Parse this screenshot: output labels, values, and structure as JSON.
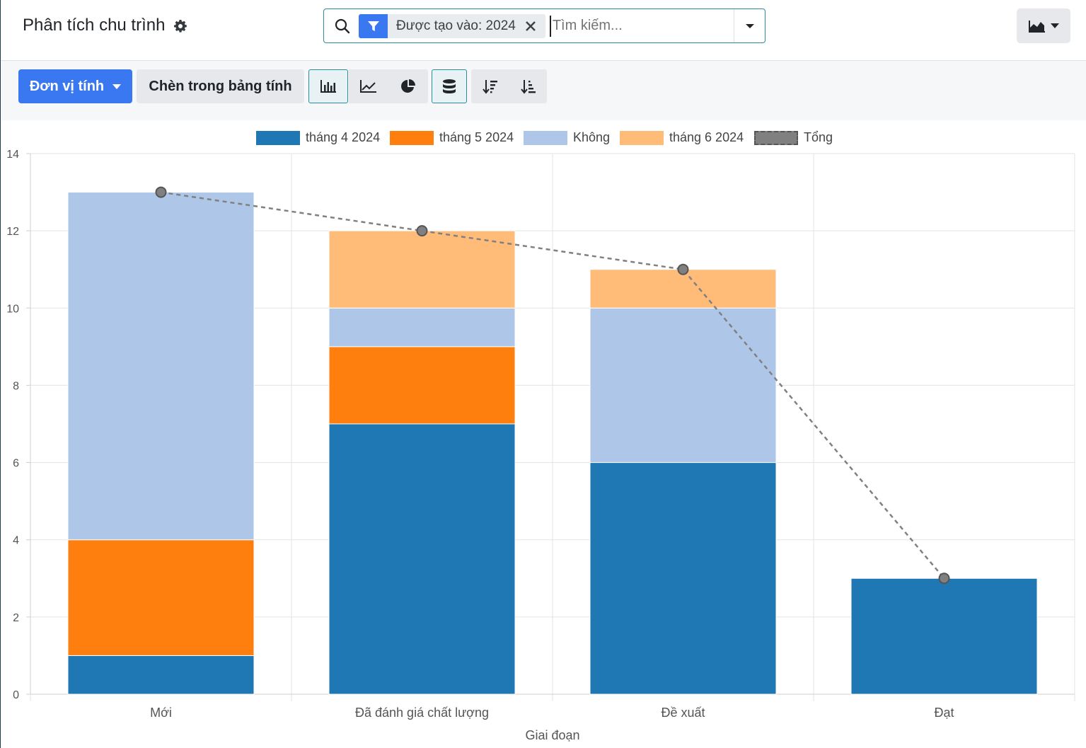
{
  "header": {
    "title": "Phân tích chu trình",
    "search": {
      "facet_label": "Được tạo vào: 2024",
      "placeholder": "Tìm kiếm..."
    }
  },
  "toolbar": {
    "measure_label": "Đơn vị tính",
    "insert_label": "Chèn trong bảng tính"
  },
  "legend": [
    {
      "label": "tháng 4 2024",
      "color": "#1f77b4"
    },
    {
      "label": "tháng 5 2024",
      "color": "#ff7f0e"
    },
    {
      "label": "Không",
      "color": "#aec7e8"
    },
    {
      "label": "tháng 6 2024",
      "color": "#ffbb78"
    },
    {
      "label": "Tổng",
      "color": "#808080"
    }
  ],
  "chart_data": {
    "type": "bar",
    "stacked": true,
    "categories": [
      "Mới",
      "Đã đánh giá chất lượng",
      "Đề xuất",
      "Đạt"
    ],
    "series": [
      {
        "name": "tháng 4 2024",
        "color": "#1f77b4",
        "values": [
          1,
          7,
          6,
          3
        ]
      },
      {
        "name": "tháng 5 2024",
        "color": "#ff7f0e",
        "values": [
          3,
          2,
          0,
          0
        ]
      },
      {
        "name": "Không",
        "color": "#aec7e8",
        "values": [
          9,
          1,
          4,
          0
        ]
      },
      {
        "name": "tháng 6 2024",
        "color": "#ffbb78",
        "values": [
          0,
          2,
          1,
          0
        ]
      }
    ],
    "total_line": {
      "name": "Tổng",
      "values": [
        13,
        12,
        11,
        3
      ],
      "style": "dashed",
      "color": "#808080"
    },
    "xlabel": "Giai đoạn",
    "ylabel": "",
    "ylim": [
      0,
      14
    ],
    "yticks": [
      0,
      2,
      4,
      6,
      8,
      10,
      12,
      14
    ],
    "grid": true,
    "legend_position": "top-center"
  }
}
